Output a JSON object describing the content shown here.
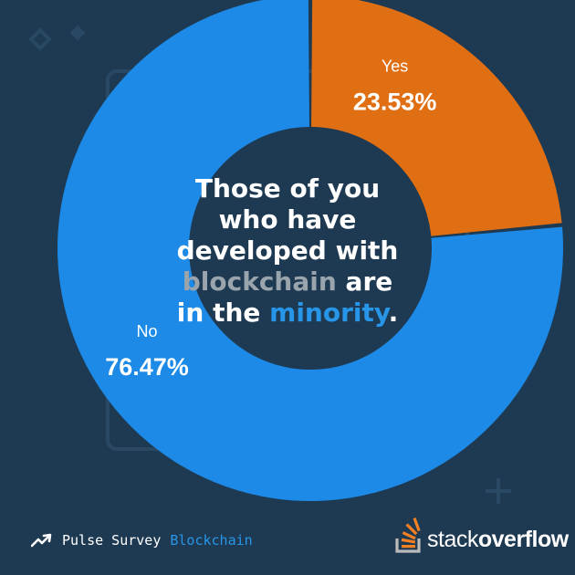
{
  "chart_data": {
    "type": "pie",
    "variant": "donut",
    "slices": [
      {
        "label": "Yes",
        "value": 23.53,
        "value_label": "23.53%",
        "color": "#e06f14"
      },
      {
        "label": "No",
        "value": 76.47,
        "value_label": "76.47%",
        "color": "#1c8ae6"
      }
    ]
  },
  "headline": {
    "line1": "Those of you",
    "line2": "who have",
    "line3": "developed with",
    "word_blockchain": "blockchain",
    "word_are": "are",
    "line5_prefix": "in the",
    "word_minority": "minority",
    "period": "."
  },
  "footer": {
    "survey": "Pulse Survey",
    "topic": "Blockchain",
    "trend_icon": "trend-up-icon"
  },
  "logo": {
    "name_regular": "stack",
    "name_bold": "overflow",
    "icon": "stack-overflow-logo-icon"
  },
  "colors": {
    "background": "#1e3a52",
    "accent_blue": "#2796e9",
    "yes_orange": "#e06f14",
    "no_blue": "#1c8ae6"
  }
}
